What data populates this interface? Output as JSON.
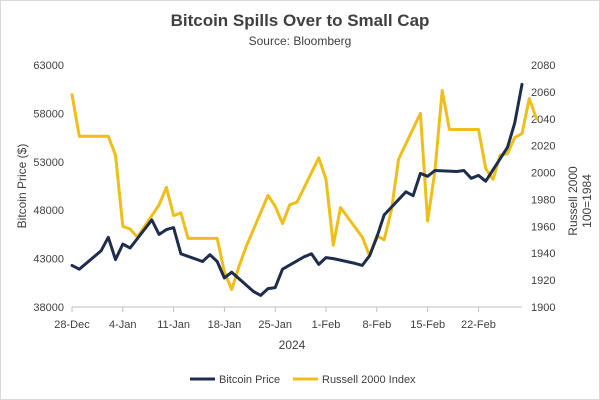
{
  "chart_data": {
    "type": "line",
    "title": "Bitcoin Spills Over to Small Cap",
    "subtitle": "Source: Bloomberg",
    "xlabel": "2024",
    "ylabel": "Bitcoin Price ($)",
    "y2label_line1": "Russell 2000",
    "y2label_line2": "100=1984",
    "x_start": "2023-12-28",
    "x_end": "2024-02-28",
    "x_ticks": [
      {
        "date": "2023-12-28",
        "label": "28-Dec"
      },
      {
        "date": "2024-01-04",
        "label": "4-Jan"
      },
      {
        "date": "2024-01-11",
        "label": "11-Jan"
      },
      {
        "date": "2024-01-18",
        "label": "18-Jan"
      },
      {
        "date": "2024-01-25",
        "label": "25-Jan"
      },
      {
        "date": "2024-02-01",
        "label": "1-Feb"
      },
      {
        "date": "2024-02-08",
        "label": "8-Feb"
      },
      {
        "date": "2024-02-15",
        "label": "15-Feb"
      },
      {
        "date": "2024-02-22",
        "label": "22-Feb"
      }
    ],
    "ylim": [
      38000,
      63000
    ],
    "y_ticks": [
      "38000",
      "43000",
      "48000",
      "53000",
      "58000",
      "63000"
    ],
    "y2lim": [
      1900,
      2080
    ],
    "y2_ticks": [
      "1900",
      "1920",
      "1940",
      "1960",
      "1980",
      "2000",
      "2020",
      "2040",
      "2060",
      "2080"
    ],
    "grid": false,
    "legend_position": "bottom",
    "series": [
      {
        "name": "Bitcoin Price",
        "axis": "left",
        "color": "#1f2d4d",
        "points": [
          [
            "2023-12-28",
            42300
          ],
          [
            "2023-12-29",
            41900
          ],
          [
            "2024-01-01",
            43800
          ],
          [
            "2024-01-02",
            45200
          ],
          [
            "2024-01-03",
            42900
          ],
          [
            "2024-01-04",
            44500
          ],
          [
            "2024-01-05",
            44100
          ],
          [
            "2024-01-08",
            47000
          ],
          [
            "2024-01-09",
            45500
          ],
          [
            "2024-01-10",
            46000
          ],
          [
            "2024-01-11",
            46200
          ],
          [
            "2024-01-12",
            43500
          ],
          [
            "2024-01-15",
            42700
          ],
          [
            "2024-01-16",
            43400
          ],
          [
            "2024-01-17",
            42700
          ],
          [
            "2024-01-18",
            41000
          ],
          [
            "2024-01-19",
            41600
          ],
          [
            "2024-01-22",
            39600
          ],
          [
            "2024-01-23",
            39200
          ],
          [
            "2024-01-24",
            39900
          ],
          [
            "2024-01-25",
            40000
          ],
          [
            "2024-01-26",
            41900
          ],
          [
            "2024-01-29",
            43200
          ],
          [
            "2024-01-30",
            43500
          ],
          [
            "2024-01-31",
            42400
          ],
          [
            "2024-02-01",
            43100
          ],
          [
            "2024-02-02",
            43000
          ],
          [
            "2024-02-05",
            42500
          ],
          [
            "2024-02-06",
            42300
          ],
          [
            "2024-02-07",
            43300
          ],
          [
            "2024-02-08",
            45200
          ],
          [
            "2024-02-09",
            47500
          ],
          [
            "2024-02-12",
            49900
          ],
          [
            "2024-02-13",
            49500
          ],
          [
            "2024-02-14",
            51800
          ],
          [
            "2024-02-15",
            51500
          ],
          [
            "2024-02-16",
            52100
          ],
          [
            "2024-02-19",
            52000
          ],
          [
            "2024-02-20",
            52100
          ],
          [
            "2024-02-21",
            51300
          ],
          [
            "2024-02-22",
            51600
          ],
          [
            "2024-02-23",
            51000
          ],
          [
            "2024-02-26",
            54500
          ],
          [
            "2024-02-27",
            57000
          ],
          [
            "2024-02-28",
            61000
          ]
        ]
      },
      {
        "name": "Russell 2000 Index",
        "axis": "right",
        "color": "#f0be1a",
        "points": [
          [
            "2023-12-28",
            2058
          ],
          [
            "2023-12-29",
            2027
          ],
          [
            "2024-01-02",
            2027
          ],
          [
            "2024-01-03",
            2013
          ],
          [
            "2024-01-04",
            1960
          ],
          [
            "2024-01-05",
            1958
          ],
          [
            "2024-01-06",
            1952
          ],
          [
            "2024-01-09",
            1976
          ],
          [
            "2024-01-10",
            1989
          ],
          [
            "2024-01-11",
            1968
          ],
          [
            "2024-01-12",
            1970
          ],
          [
            "2024-01-13",
            1951
          ],
          [
            "2024-01-16",
            1951
          ],
          [
            "2024-01-17",
            1951
          ],
          [
            "2024-01-18",
            1926
          ],
          [
            "2024-01-19",
            1913
          ],
          [
            "2024-01-20",
            1930
          ],
          [
            "2024-01-21",
            1945
          ],
          [
            "2024-01-24",
            1983
          ],
          [
            "2024-01-25",
            1975
          ],
          [
            "2024-01-26",
            1962
          ],
          [
            "2024-01-27",
            1976
          ],
          [
            "2024-01-28",
            1978
          ],
          [
            "2024-01-31",
            2011
          ],
          [
            "2024-02-01",
            1995
          ],
          [
            "2024-02-02",
            1946
          ],
          [
            "2024-02-03",
            1974
          ],
          [
            "2024-02-06",
            1952
          ],
          [
            "2024-02-07",
            1938
          ],
          [
            "2024-02-08",
            1953
          ],
          [
            "2024-02-09",
            1950
          ],
          [
            "2024-02-10",
            1972
          ],
          [
            "2024-02-11",
            2010
          ],
          [
            "2024-02-14",
            2044
          ],
          [
            "2024-02-15",
            1964
          ],
          [
            "2024-02-16",
            2001
          ],
          [
            "2024-02-17",
            2061
          ],
          [
            "2024-02-18",
            2032
          ],
          [
            "2024-02-21",
            2032
          ],
          [
            "2024-02-22",
            2032
          ],
          [
            "2024-02-23",
            2003
          ],
          [
            "2024-02-24",
            1995
          ],
          [
            "2024-02-25",
            2013
          ],
          [
            "2024-02-26",
            2014
          ],
          [
            "2024-02-27",
            2026
          ],
          [
            "2024-02-28",
            2029
          ],
          [
            "2024-02-29",
            2055
          ],
          [
            "2024-03-01",
            2040
          ]
        ]
      }
    ]
  }
}
